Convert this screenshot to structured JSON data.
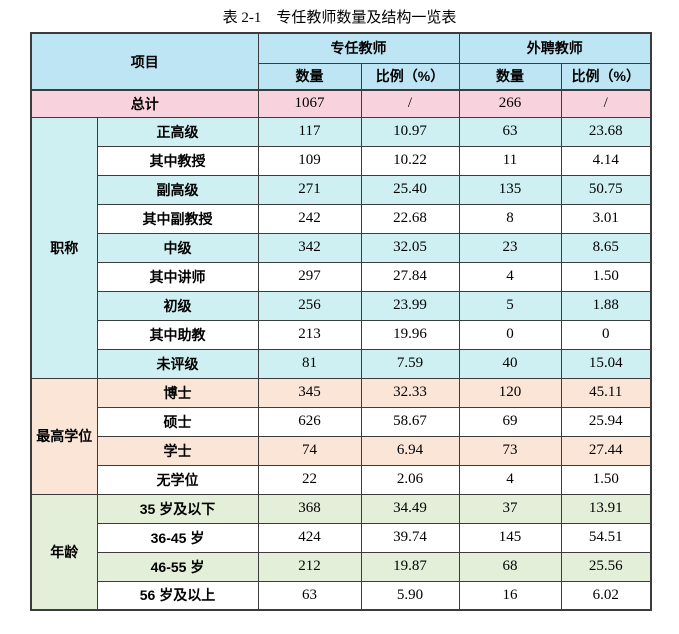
{
  "title": "表 2-1　专任教师数量及结构一览表",
  "colors": {
    "header_blue": "#BEE5F4",
    "total_pink": "#F8D3DD",
    "section_title_cyan": "#CFF0F3",
    "section_degree_peach": "#FBE5D7",
    "section_age_green": "#E3EFD9",
    "row_white": "#FFFFFF",
    "border": "#3C3C3C"
  },
  "table": {
    "header": {
      "item_label": "项目",
      "groups": [
        {
          "label": "专任教师",
          "subcols": [
            "数量",
            "比例（%）"
          ]
        },
        {
          "label": "外聘教师",
          "subcols": [
            "数量",
            "比例（%）"
          ]
        }
      ]
    },
    "total_row": {
      "label": "总计",
      "values": [
        "1067",
        "/",
        "266",
        "/"
      ]
    },
    "sections": [
      {
        "name": "职称",
        "shade_key": "section_title_cyan",
        "rows": [
          {
            "label": "正高级",
            "values": [
              "117",
              "10.97",
              "63",
              "23.68"
            ],
            "shaded": true
          },
          {
            "label": "其中教授",
            "values": [
              "109",
              "10.22",
              "11",
              "4.14"
            ],
            "shaded": false
          },
          {
            "label": "副高级",
            "values": [
              "271",
              "25.40",
              "135",
              "50.75"
            ],
            "shaded": true
          },
          {
            "label": "其中副教授",
            "values": [
              "242",
              "22.68",
              "8",
              "3.01"
            ],
            "shaded": false
          },
          {
            "label": "中级",
            "values": [
              "342",
              "32.05",
              "23",
              "8.65"
            ],
            "shaded": true
          },
          {
            "label": "其中讲师",
            "values": [
              "297",
              "27.84",
              "4",
              "1.50"
            ],
            "shaded": false
          },
          {
            "label": "初级",
            "values": [
              "256",
              "23.99",
              "5",
              "1.88"
            ],
            "shaded": true
          },
          {
            "label": "其中助教",
            "values": [
              "213",
              "19.96",
              "0",
              "0"
            ],
            "shaded": false
          },
          {
            "label": "未评级",
            "values": [
              "81",
              "7.59",
              "40",
              "15.04"
            ],
            "shaded": true
          }
        ]
      },
      {
        "name": "最高学位",
        "shade_key": "section_degree_peach",
        "rows": [
          {
            "label": "博士",
            "values": [
              "345",
              "32.33",
              "120",
              "45.11"
            ],
            "shaded": true
          },
          {
            "label": "硕士",
            "values": [
              "626",
              "58.67",
              "69",
              "25.94"
            ],
            "shaded": false
          },
          {
            "label": "学士",
            "values": [
              "74",
              "6.94",
              "73",
              "27.44"
            ],
            "shaded": true
          },
          {
            "label": "无学位",
            "values": [
              "22",
              "2.06",
              "4",
              "1.50"
            ],
            "shaded": false
          }
        ]
      },
      {
        "name": "年龄",
        "shade_key": "section_age_green",
        "rows": [
          {
            "label": "35 岁及以下",
            "values": [
              "368",
              "34.49",
              "37",
              "13.91"
            ],
            "shaded": true
          },
          {
            "label": "36-45 岁",
            "values": [
              "424",
              "39.74",
              "145",
              "54.51"
            ],
            "shaded": false
          },
          {
            "label": "46-55 岁",
            "values": [
              "212",
              "19.87",
              "68",
              "25.56"
            ],
            "shaded": true
          },
          {
            "label": "56 岁及以上",
            "values": [
              "63",
              "5.90",
              "16",
              "6.02"
            ],
            "shaded": false
          }
        ]
      }
    ]
  }
}
